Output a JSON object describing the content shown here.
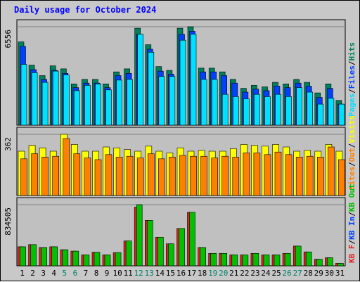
{
  "title": "Daily usage for October 2024",
  "colors": {
    "hits": "#00805c",
    "files": "#0040ff",
    "pages": "#00e0ff",
    "visits": "#ffff00",
    "sites": "#ff8000",
    "kb_in": "#00c000",
    "kb_out": "#e02020"
  },
  "chart_data": [
    {
      "type": "bar",
      "categories": [
        "1",
        "2",
        "3",
        "4",
        "5",
        "6",
        "7",
        "8",
        "9",
        "10",
        "11",
        "12",
        "13",
        "14",
        "15",
        "16",
        "17",
        "18",
        "19",
        "20",
        "21",
        "22",
        "23",
        "24",
        "25",
        "26",
        "27",
        "28",
        "29",
        "30",
        "31"
      ],
      "weekend_days": [
        "5",
        "6",
        "12",
        "13",
        "19",
        "20",
        "26",
        "27"
      ],
      "ymax_label": "6556",
      "ylim": [
        0,
        6556
      ],
      "legend": [
        "Pages",
        "Files",
        "Hits"
      ],
      "series": [
        {
          "name": "Hits",
          "values": [
            5550,
            4000,
            3300,
            3950,
            3750,
            2750,
            3050,
            3050,
            2750,
            3550,
            3750,
            6456,
            5356,
            3900,
            3650,
            6456,
            6556,
            3800,
            3800,
            3550,
            3050,
            2450,
            2650,
            2550,
            2850,
            2750,
            3050,
            2850,
            2150,
            2750,
            1650
          ]
        },
        {
          "name": "Files",
          "values": [
            5250,
            3700,
            3050,
            3650,
            3450,
            2500,
            2800,
            2800,
            2500,
            3300,
            3450,
            6056,
            5056,
            3600,
            3400,
            6056,
            6256,
            3550,
            3550,
            3300,
            2800,
            2200,
            2400,
            2300,
            2600,
            2500,
            2800,
            2600,
            1850,
            2450,
            1400
          ]
        },
        {
          "name": "Pages",
          "values": [
            4050,
            3500,
            2850,
            3600,
            3350,
            2300,
            2650,
            2750,
            2350,
            3000,
            3050,
            6056,
            4856,
            3250,
            3250,
            5656,
            6056,
            3050,
            3050,
            2050,
            1900,
            1750,
            2050,
            1900,
            2050,
            1900,
            2500,
            2200,
            1400,
            1800,
            1400
          ]
        }
      ]
    },
    {
      "type": "bar",
      "categories": [
        "1",
        "2",
        "3",
        "4",
        "5",
        "6",
        "7",
        "8",
        "9",
        "10",
        "11",
        "12",
        "13",
        "14",
        "15",
        "16",
        "17",
        "18",
        "19",
        "20",
        "21",
        "22",
        "23",
        "24",
        "25",
        "26",
        "27",
        "28",
        "29",
        "30",
        "31"
      ],
      "ymax_label": "362",
      "ylim": [
        0,
        362
      ],
      "legend": [
        "Sites",
        "Out",
        "Visits"
      ],
      "series": [
        {
          "name": "Visits",
          "values": [
            262,
            297,
            282,
            262,
            362,
            302,
            262,
            262,
            287,
            282,
            272,
            262,
            292,
            262,
            252,
            282,
            262,
            267,
            262,
            262,
            277,
            302,
            297,
            292,
            302,
            287,
            262,
            267,
            262,
            302,
            262
          ]
        },
        {
          "name": "Sites",
          "values": [
            217,
            247,
            227,
            232,
            337,
            247,
            222,
            212,
            242,
            227,
            232,
            222,
            247,
            217,
            227,
            237,
            232,
            232,
            222,
            232,
            227,
            252,
            252,
            242,
            257,
            242,
            227,
            232,
            227,
            287,
            212
          ]
        }
      ]
    },
    {
      "type": "bar",
      "categories": [
        "1",
        "2",
        "3",
        "4",
        "5",
        "6",
        "7",
        "8",
        "9",
        "10",
        "11",
        "12",
        "13",
        "14",
        "15",
        "16",
        "17",
        "18",
        "19",
        "20",
        "21",
        "22",
        "23",
        "24",
        "25",
        "26",
        "27",
        "28",
        "29",
        "30",
        "31"
      ],
      "ymax_label": "834505",
      "ylim": [
        0,
        834505
      ],
      "legend": [
        "KB F",
        "KB In",
        "KB Out"
      ],
      "series": [
        {
          "name": "KB In",
          "values": [
            260000,
            290000,
            250000,
            260000,
            220000,
            200000,
            150000,
            185000,
            150000,
            180000,
            340000,
            834505,
            620000,
            390000,
            300000,
            510000,
            730000,
            250000,
            170000,
            170000,
            150000,
            150000,
            170000,
            150000,
            150000,
            170000,
            270000,
            190000,
            90000,
            110000,
            35000
          ]
        },
        {
          "name": "KB F",
          "values": [
            260000,
            290000,
            250000,
            260000,
            220000,
            200000,
            150000,
            185000,
            150000,
            180000,
            340000,
            800000,
            620000,
            390000,
            300000,
            510000,
            730000,
            250000,
            170000,
            170000,
            150000,
            150000,
            170000,
            150000,
            150000,
            170000,
            270000,
            190000,
            90000,
            110000,
            35000
          ]
        }
      ]
    }
  ]
}
